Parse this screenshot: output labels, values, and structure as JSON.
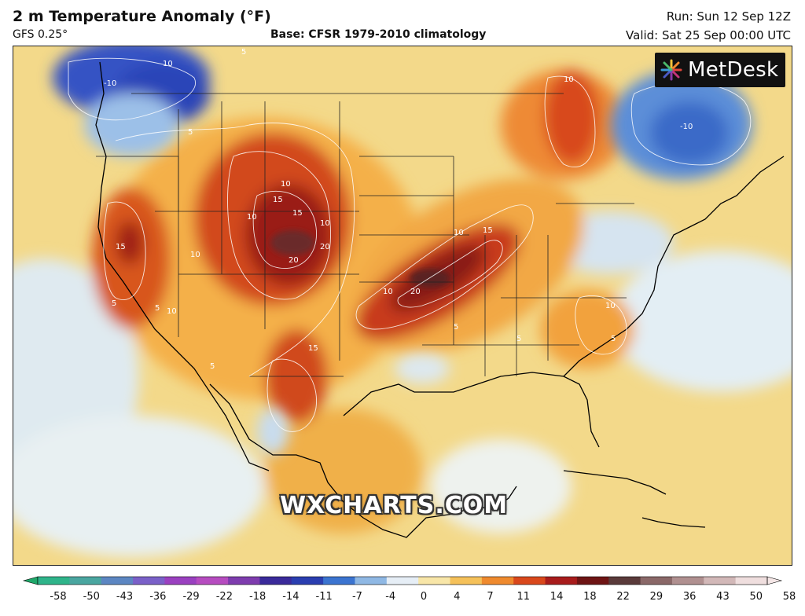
{
  "header": {
    "title": "2 m Temperature Anomaly (°F)",
    "model": "GFS 0.25°",
    "base": "Base: CFSR 1979-2010 climatology",
    "run": "Run: Sun 12 Sep 12Z",
    "valid": "Valid: Sat 25 Sep 00:00 UTC"
  },
  "logo": {
    "text": "MetDesk"
  },
  "watermark": "WXCHARTS.COM",
  "contour_labels": [
    "10",
    "10",
    "-10",
    "-10",
    "5",
    "5",
    "10",
    "15",
    "15",
    "20",
    "20",
    "15",
    "10",
    "10",
    "20",
    "15",
    "10",
    "10",
    "5",
    "5",
    "15",
    "10",
    "10",
    "5",
    "5",
    "5",
    "10",
    "5"
  ],
  "colorbar": {
    "ticks": [
      "-58",
      "-50",
      "-43",
      "-36",
      "-29",
      "-22",
      "-18",
      "-14",
      "-11",
      "-7",
      "-4",
      "0",
      "4",
      "7",
      "11",
      "14",
      "18",
      "22",
      "29",
      "36",
      "43",
      "50",
      "58"
    ],
    "colors": [
      "#2fb48a",
      "#4aa6a0",
      "#5c86c2",
      "#7a60c8",
      "#9a40c0",
      "#b64cc0",
      "#7e3cae",
      "#3a2a9a",
      "#2a3eb0",
      "#3b74d0",
      "#8fb8e4",
      "#e6eef6",
      "#f8e6a8",
      "#f5c15a",
      "#ef8a2e",
      "#d9481c",
      "#a81c1c",
      "#6e1414",
      "#5a3a3a",
      "#8a6868",
      "#b09090",
      "#d2b8b8",
      "#efdede"
    ]
  }
}
